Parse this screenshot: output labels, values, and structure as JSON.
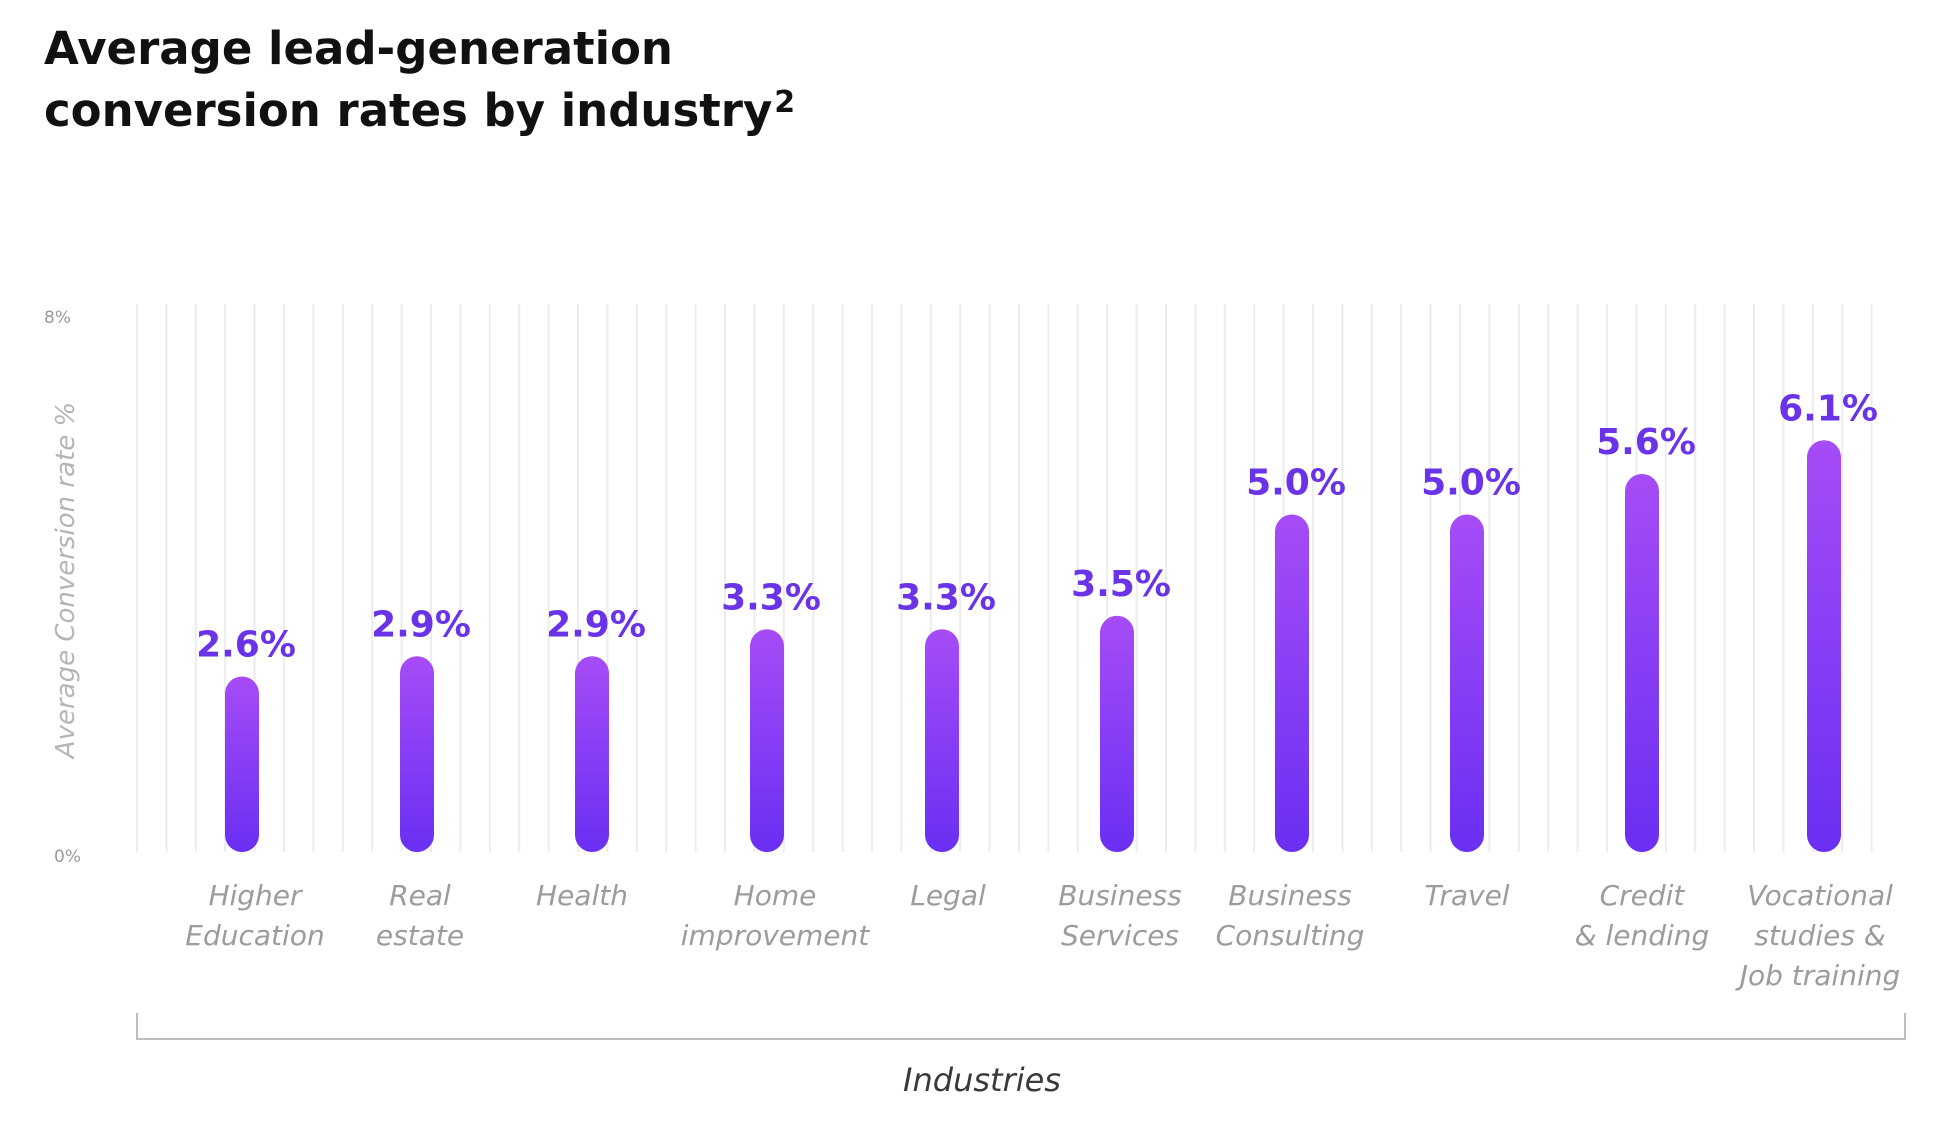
{
  "title": {
    "line1": "Average lead-generation",
    "line2": "conversion rates by industry",
    "superscript": "2"
  },
  "chart_data": {
    "type": "bar",
    "title": "Average lead-generation conversion rates by industry",
    "xlabel": "Industries",
    "ylabel": "Average Conversion rate %",
    "ylim": [
      0,
      8
    ],
    "y_ticks": [
      "0%",
      "8%"
    ],
    "grid": "vertical",
    "categories": [
      [
        "Higher",
        "Education"
      ],
      [
        "Real",
        "estate"
      ],
      [
        "Health"
      ],
      [
        "Home",
        "improvement"
      ],
      [
        "Legal"
      ],
      [
        "Business",
        "Services"
      ],
      [
        "Business",
        "Consulting"
      ],
      [
        "Travel"
      ],
      [
        "Credit",
        "& lending"
      ],
      [
        "Vocational",
        "studies &",
        "Job training"
      ]
    ],
    "values": [
      2.6,
      2.9,
      2.9,
      3.3,
      3.3,
      3.5,
      5.0,
      5.0,
      5.6,
      6.1
    ],
    "value_labels": [
      "2.6%",
      "2.9%",
      "2.9%",
      "3.3%",
      "3.3%",
      "3.5%",
      "5.0%",
      "5.0%",
      "5.6%",
      "6.1%"
    ],
    "colors": {
      "bar_top": "#a64cf7",
      "bar_bottom": "#6a2ff2",
      "label": "#6a33e8",
      "grid": "#ececec",
      "axis": "#bdbdbd"
    }
  }
}
